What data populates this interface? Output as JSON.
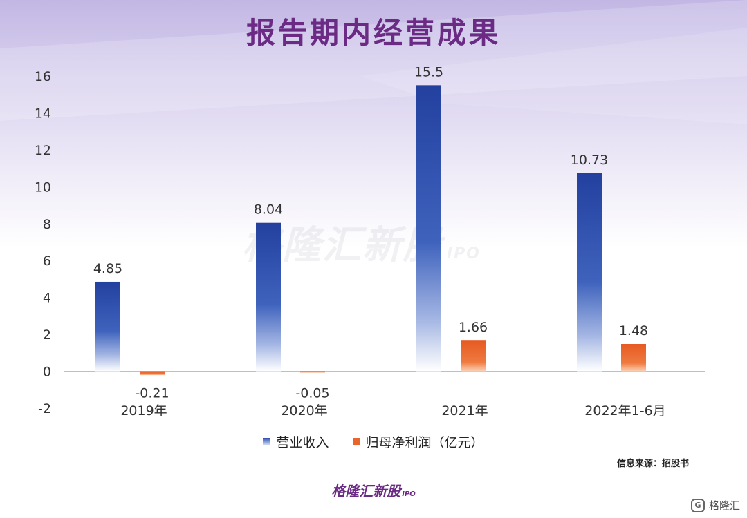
{
  "title": "报告期内经营成果",
  "watermark": {
    "text": "格隆汇新股",
    "ipo": "IPO"
  },
  "legend": [
    {
      "label": "营业收入",
      "color": "#2f4fb0"
    },
    {
      "label": "归母净利润（亿元）",
      "color": "#e9652b"
    }
  ],
  "source": "信息来源：招股书",
  "brand": {
    "text": "格隆汇新股",
    "ipo": "IPO"
  },
  "corner": {
    "logo": "G",
    "text": "格隆汇"
  },
  "chart_data": {
    "type": "bar",
    "categories": [
      "2019年",
      "2020年",
      "2021年",
      "2022年1-6月"
    ],
    "series": [
      {
        "name": "营业收入",
        "values": [
          4.85,
          8.04,
          15.5,
          10.73
        ],
        "labels": [
          "4.85",
          "8.04",
          "15.5",
          "10.73"
        ],
        "color": "#2f4fb0"
      },
      {
        "name": "归母净利润（亿元）",
        "values": [
          -0.21,
          -0.05,
          1.66,
          1.48
        ],
        "labels": [
          "-0.21",
          "-0.05",
          "1.66",
          "1.48"
        ],
        "color": "#e9652b"
      }
    ],
    "ylim": [
      -2,
      16
    ],
    "yticks": [
      "16",
      "14",
      "12",
      "10",
      "8",
      "6",
      "4",
      "2",
      "0",
      "-2"
    ],
    "grid": false,
    "legend_position": "bottom"
  }
}
